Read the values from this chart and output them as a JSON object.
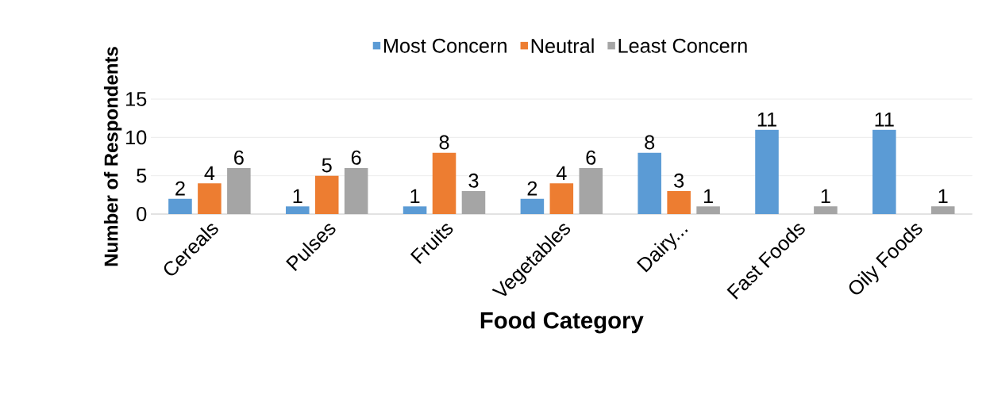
{
  "chart_data": {
    "type": "bar",
    "xlabel": "Food Category",
    "ylabel": "Number of Respondents",
    "categories": [
      "Cereals",
      "Pulses",
      "Fruits",
      "Vegetables",
      "Dairy...",
      "Fast Foods",
      "Oily Foods"
    ],
    "series": [
      {
        "name": "Most Concern",
        "color": "#5b9bd5",
        "values": [
          2,
          1,
          1,
          2,
          8,
          11,
          11
        ]
      },
      {
        "name": "Neutral",
        "color": "#ed7d31",
        "values": [
          4,
          5,
          8,
          4,
          3,
          null,
          null
        ]
      },
      {
        "name": "Least Concern",
        "color": "#a5a5a5",
        "values": [
          6,
          6,
          3,
          6,
          1,
          1,
          1
        ]
      }
    ],
    "ylim": [
      0,
      15
    ],
    "yticks": [
      0,
      5,
      10,
      15
    ],
    "grid": "y",
    "legend": "top",
    "data_labels": true
  }
}
